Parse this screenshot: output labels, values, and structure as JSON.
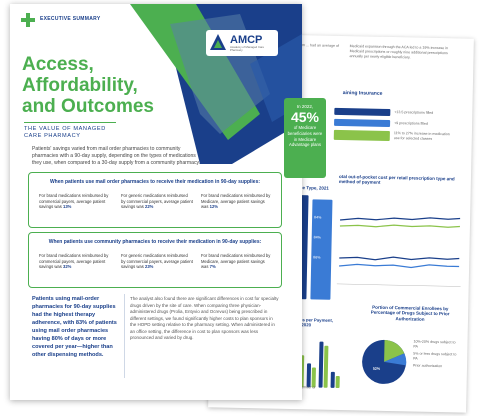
{
  "colors": {
    "navy": "#1a3f8a",
    "green": "#4caf50",
    "lightgreen": "#8bc34a",
    "blue": "#3a7bd5"
  },
  "header": {
    "badge": "EXECUTIVE SUMMARY",
    "logo": "AMCP",
    "logo_sub": "Academy of Managed Care Pharmacy",
    "title_line1": "Access,",
    "title_line2": "Affordability,",
    "title_line3": "and Outcomes",
    "subtitle": "THE VALUE OF MANAGED CARE PHARMACY"
  },
  "intro": "Patients' savings varied from mail order pharmacies to community pharmacies with a 90-day supply, depending on the types of medications they use, when compared to a 30-day supply from a community pharmacy.",
  "mail_box": {
    "title": "When patients use mail order pharmacies to receive their medication in 90-day supplies:",
    "cells": [
      {
        "text": "For brand medications reimbursed by commercial payers, average patient savings was ",
        "value": "13%"
      },
      {
        "text": "For generic medications reimbursed by commercial payers, average patient savings was ",
        "value": "22%"
      },
      {
        "text": "For brand medications reimbursed by Medicare, average patient savings was ",
        "value": "12%"
      }
    ]
  },
  "community_box": {
    "title": "When patients use community pharmacies to receive their medication in 90-day supplies:",
    "cells": [
      {
        "text": "For brand medications reimbursed by commercial payers, average patient savings was ",
        "value": "32%"
      },
      {
        "text": "For generic medications reimbursed by commercial payers, average patient savings was ",
        "value": "23%"
      },
      {
        "text": "For brand medications reimbursed by Medicare, average patient savings was ",
        "value": "7%"
      }
    ]
  },
  "highlight": "Patients using mail-order pharmacies for 90-day supplies had the highest therapy adherence, with 83% of patients using mail order pharmacies having 80% of days or more covered per year—higher than other dispensing methods.",
  "body_text": "The analyst also found there are significant differences in cost for specialty drugs driven by the site of care. When comparing three physician-administered drugs (Prolia, Entyvio and Ocrevus) being prescribed in different settings, we found significantly higher costs to plan sponsors in the HOPD setting relative to the pharmacy setting. When administered in an office setting, the difference in cost to plan sponsors was less pronounced and varied by drug.",
  "stat": {
    "pre": "In 2022,",
    "value": "45%",
    "post": "of Medicare beneficiaries were in Medicare Advantage plans"
  },
  "back": {
    "top_left": "individuals who were from ... had an average of 13.5",
    "top_right": "Medicaid expansion through the ACA led to a 19% increase in Medicaid prescriptions or roughly nine additional prescriptions annually per newly eligible beneficiary.",
    "insurance_heading": "aining Insurance",
    "insurance_rows": [
      {
        "label": "+13.5 prescriptions filled"
      },
      {
        "label": "+9 prescriptions filled"
      },
      {
        "label": "11% to 27% increase in medication use for selected classes"
      }
    ],
    "insurance_tags": [
      "MEDICAID",
      "PRIVATE COVERAGE",
      "MEDICARE PART D"
    ],
    "chart1_title": "ance Type, 2021",
    "chart1_pcts": [
      "82%",
      "77%",
      "70%",
      "84%",
      "84%",
      "86%"
    ],
    "chart2_title": "otal out-of-pocket cost per retail prescription type and method of payment",
    "chart3_title": "escriptions per Payment, 2008 and 2020",
    "chart3_labels": [
      "CASH",
      "COMMERCIAL",
      "MEDICAID",
      "MEDICARE",
      "THIRD PARTY"
    ],
    "pie_title": "Portion of Commercial Enrollees by Percentage of Drugs Subject to Prior Authorization",
    "pie_labels": [
      "10%-20% drugs subject to PA",
      "5% or less drugs subject to PA",
      "Prior authorization"
    ],
    "pie_value": "52%",
    "footer": "Medicare patients received a substantially higher number of prescriptions than enrollees in other types."
  }
}
